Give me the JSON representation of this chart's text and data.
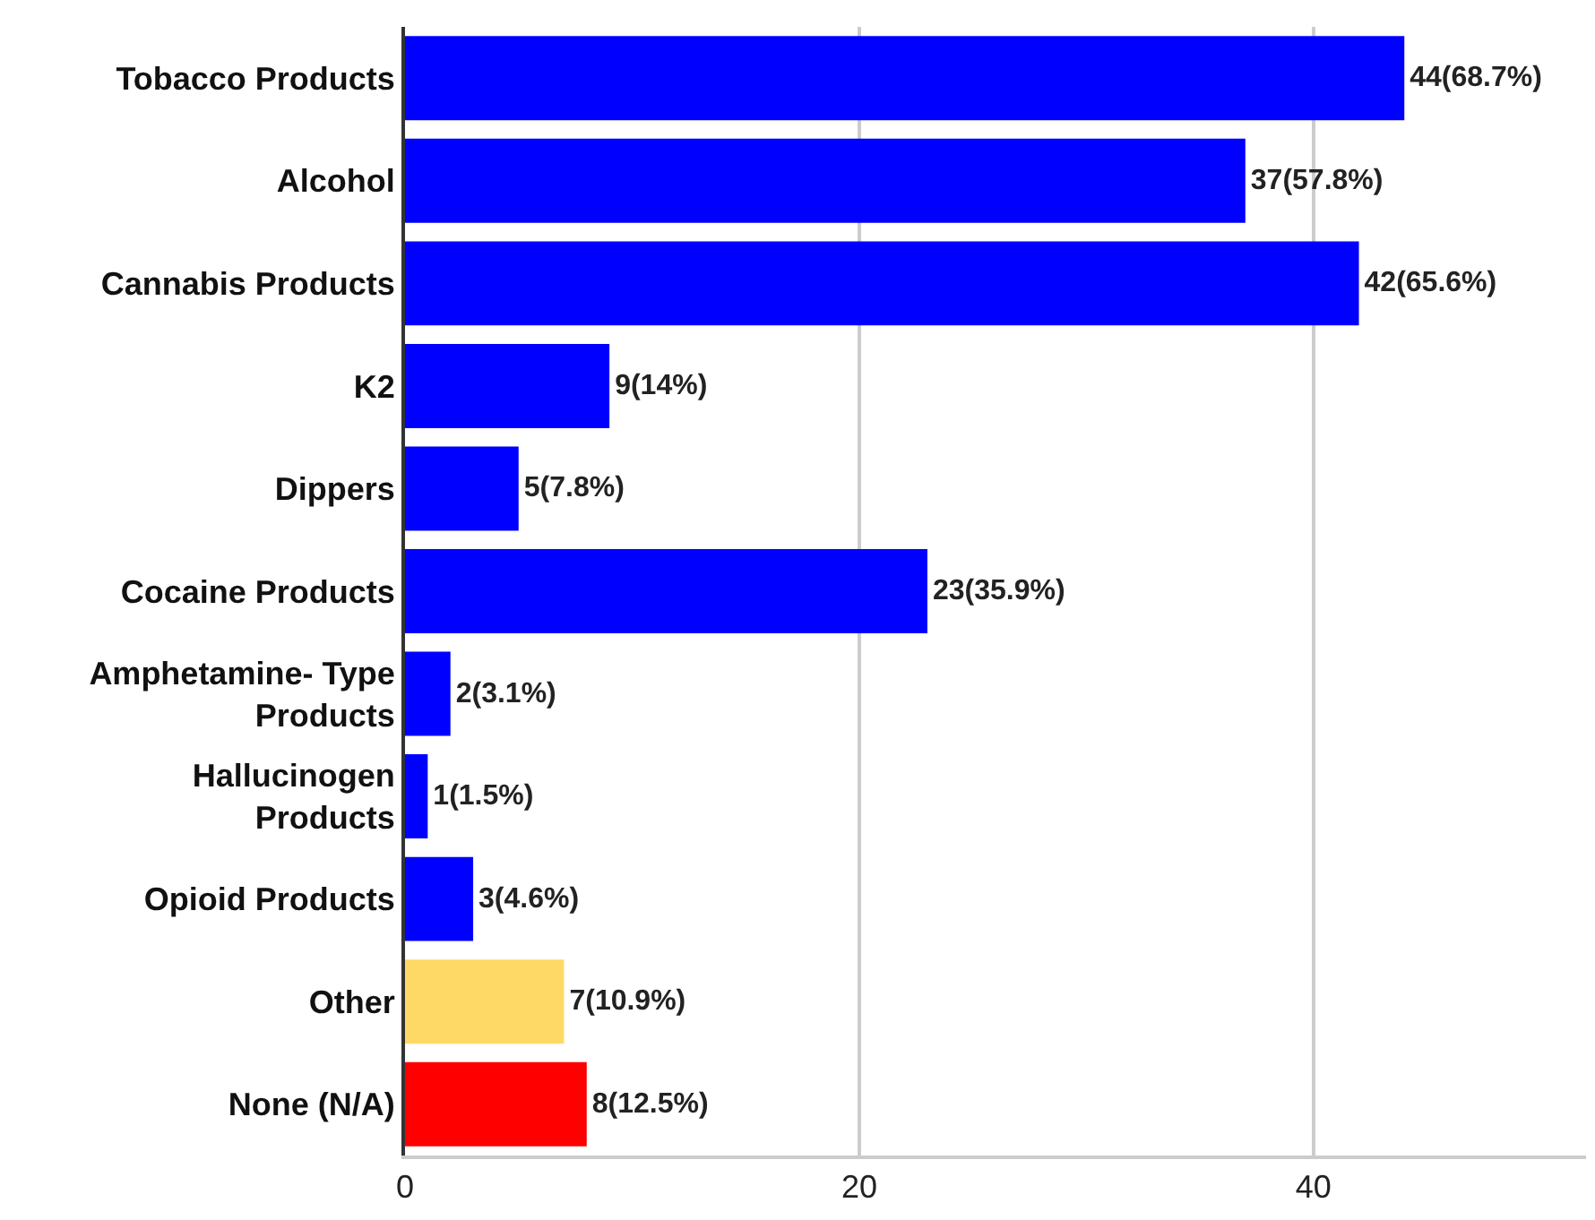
{
  "chart_data": {
    "type": "bar",
    "orientation": "horizontal",
    "categories": [
      "Tobacco Products",
      "Alcohol",
      "Cannabis Products",
      "K2",
      "Dippers",
      "Cocaine Products",
      "Amphetamine- Type Products",
      "Hallucinogen Products",
      "Opioid Products",
      "Other",
      "None (N/A)"
    ],
    "values": [
      44,
      37,
      42,
      9,
      5,
      23,
      2,
      1,
      3,
      7,
      8
    ],
    "colors": [
      "#0000ff",
      "#0000ff",
      "#0000ff",
      "#0000ff",
      "#0000ff",
      "#0000ff",
      "#0000ff",
      "#0000ff",
      "#0000ff",
      "#ffd966",
      "#ff0000"
    ],
    "value_labels": [
      "44(68.7%)",
      "37(57.8%)",
      "42(65.6%)",
      "9(14%)",
      "5(7.8%)",
      "23(35.9%)",
      "2(3.1%)",
      "1(1.5%)",
      "3(4.6%)",
      "7(10.9%)",
      "8(12.5%)"
    ],
    "xlim": [
      0,
      52
    ],
    "xticks": [
      0,
      20,
      40
    ],
    "grid": "x"
  }
}
